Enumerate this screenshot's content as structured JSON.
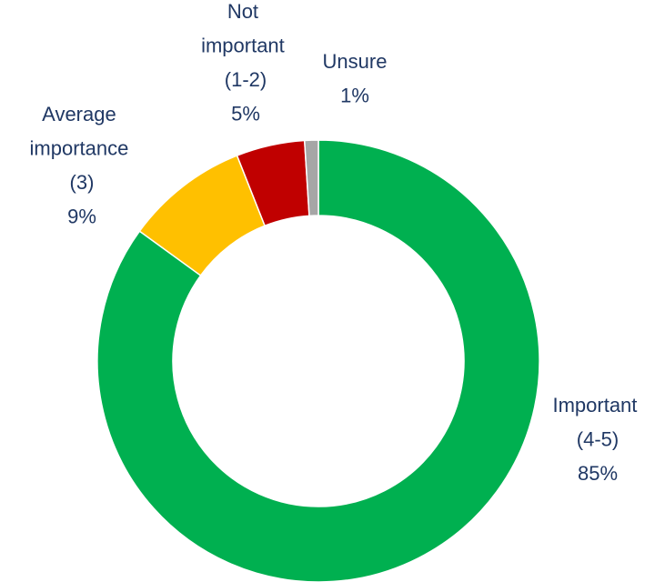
{
  "chart_data": {
    "type": "donut",
    "categories": [
      "Important (4-5)",
      "Average importance (3)",
      "Not important (1-2)",
      "Unsure"
    ],
    "values": [
      85,
      9,
      5,
      1
    ],
    "value_labels": [
      "85%",
      "9%",
      "5%",
      "1%"
    ],
    "colors": [
      "#00b050",
      "#ffc000",
      "#c00000",
      "#a6a6a6"
    ]
  }
}
